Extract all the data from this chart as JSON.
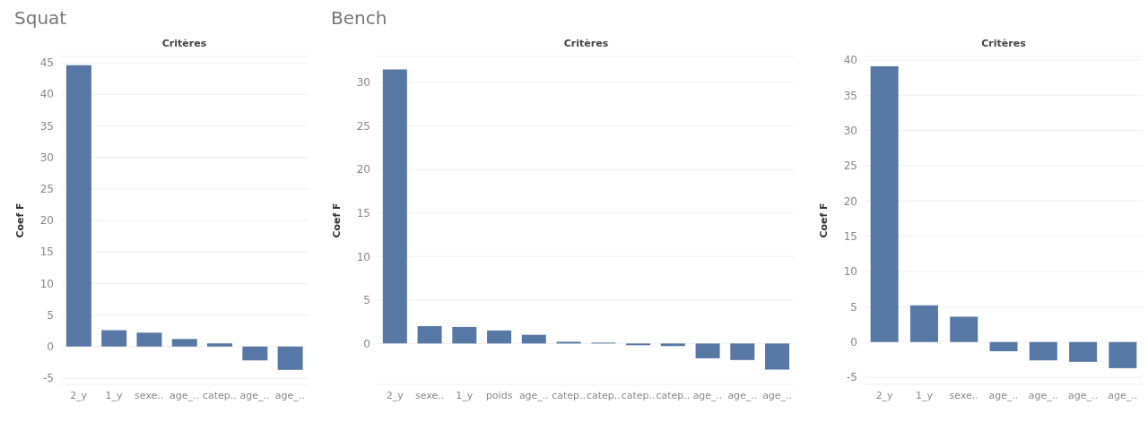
{
  "chart_data": [
    {
      "type": "bar",
      "title": "Squat",
      "xlabel": "Critères",
      "ylabel": "Coef F",
      "categories": [
        "2_y",
        "1_y",
        "sexe..",
        "age_..",
        "catep..",
        "age_..",
        "age_.."
      ],
      "values": [
        44.6,
        2.6,
        2.2,
        1.2,
        0.5,
        -2.2,
        -3.7
      ],
      "color": "#5778a4",
      "ylim": [
        -6,
        46
      ],
      "yticks": [
        -5,
        0,
        5,
        10,
        15,
        20,
        25,
        30,
        35,
        40,
        45
      ],
      "grid": "y"
    },
    {
      "type": "bar",
      "title": "Bench",
      "xlabel": "Critères",
      "ylabel": "Coef F",
      "categories": [
        "2_y",
        "sexe..",
        "1_y",
        "poids",
        "age_..",
        "catep..",
        "catep..",
        "catep..",
        "catep..",
        "age_..",
        "age_..",
        "age_.."
      ],
      "values": [
        31.5,
        2.0,
        1.9,
        1.5,
        1.0,
        0.2,
        0.1,
        -0.2,
        -0.3,
        -1.7,
        -1.9,
        -3.0
      ],
      "color": "#5778a4",
      "ylim": [
        -4.7,
        33
      ],
      "yticks": [
        0,
        5,
        10,
        15,
        20,
        25,
        30
      ],
      "grid": "y"
    },
    {
      "type": "bar",
      "xlabel": "Critères",
      "ylabel": "Coef F",
      "categories": [
        "2_y",
        "1_y",
        "sexe..",
        "age_..",
        "age_..",
        "age_..",
        "age_.."
      ],
      "values": [
        39.1,
        5.2,
        3.6,
        -1.3,
        -2.6,
        -2.8,
        -3.7
      ],
      "color": "#5778a4",
      "ylim": [
        -6,
        40.5
      ],
      "yticks": [
        -5,
        0,
        5,
        10,
        15,
        20,
        25,
        30,
        35,
        40
      ],
      "grid": "y"
    }
  ]
}
